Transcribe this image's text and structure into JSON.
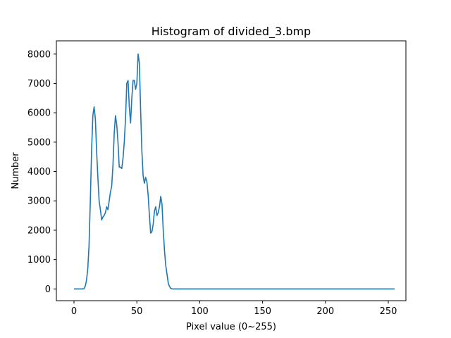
{
  "chart_data": {
    "type": "line",
    "title": "Histogram of divided_3.bmp",
    "xlabel": "Pixel value (0~255)",
    "ylabel": "Number",
    "xlim": [
      -14,
      264
    ],
    "ylim": [
      -400,
      8450
    ],
    "xticks": [
      0,
      50,
      100,
      150,
      200,
      250
    ],
    "yticks": [
      0,
      1000,
      2000,
      3000,
      4000,
      5000,
      6000,
      7000,
      8000
    ],
    "grid": false,
    "line_color": "#1f77b4",
    "series": [
      {
        "x": [
          0,
          1,
          2,
          3,
          4,
          5,
          6,
          7,
          8,
          9,
          10,
          11,
          12,
          13,
          14,
          15,
          16,
          17,
          18,
          19,
          20,
          21,
          22,
          23,
          24,
          25,
          26,
          27,
          28,
          29,
          30,
          31,
          32,
          33,
          34,
          35,
          36,
          37,
          38,
          39,
          40,
          41,
          42,
          43,
          44,
          45,
          46,
          47,
          48,
          49,
          50,
          51,
          52,
          53,
          54,
          55,
          56,
          57,
          58,
          59,
          60,
          61,
          62,
          63,
          64,
          65,
          66,
          67,
          68,
          69,
          70,
          71,
          72,
          73,
          74,
          75,
          76,
          77,
          78,
          79,
          80,
          90,
          100,
          110,
          120,
          130,
          140,
          150,
          160,
          170,
          180,
          190,
          200,
          210,
          220,
          230,
          240,
          250,
          255
        ],
        "y": [
          0,
          0,
          0,
          0,
          0,
          0,
          0,
          0,
          10,
          100,
          300,
          700,
          1500,
          3000,
          4700,
          5900,
          6200,
          5800,
          4700,
          3800,
          3000,
          2700,
          2350,
          2450,
          2500,
          2600,
          2800,
          2700,
          3000,
          3300,
          3500,
          4200,
          5300,
          5900,
          5600,
          5000,
          4150,
          4150,
          4100,
          4450,
          5000,
          5800,
          7000,
          7100,
          6200,
          5650,
          6500,
          7100,
          7100,
          6800,
          7000,
          8000,
          7700,
          6100,
          4700,
          3850,
          3600,
          3800,
          3650,
          3200,
          2500,
          1900,
          1950,
          2200,
          2650,
          2800,
          2500,
          2600,
          2800,
          3150,
          2900,
          2000,
          1300,
          800,
          500,
          200,
          80,
          20,
          5,
          0,
          0,
          0,
          0,
          0,
          0,
          0,
          0,
          0,
          0,
          0,
          0,
          0,
          0,
          0,
          0,
          0,
          0,
          0,
          0
        ]
      }
    ]
  }
}
